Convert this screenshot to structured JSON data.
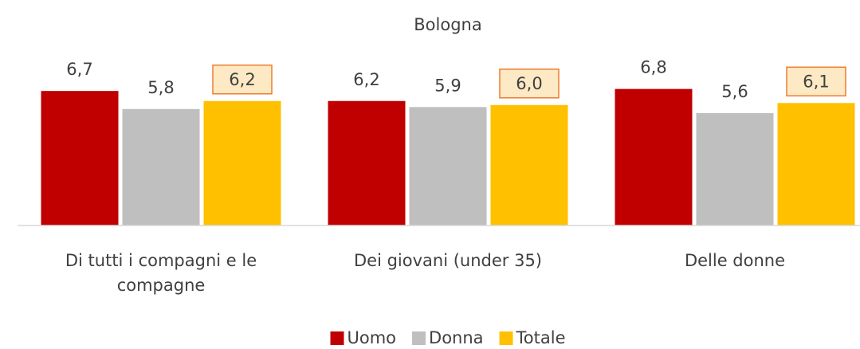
{
  "chart_data": {
    "type": "bar",
    "title": "Bologna",
    "categories": [
      "Di tutti i compagni e le compagne",
      "Dei giovani (under 35)",
      "Delle donne"
    ],
    "series": [
      {
        "name": "Uomo",
        "color": "#c00000",
        "values": [
          6.7,
          6.2,
          6.8
        ],
        "value_labels": [
          "6,7",
          "6,2",
          "6,8"
        ]
      },
      {
        "name": "Donna",
        "color": "#bfbfbf",
        "values": [
          5.8,
          5.9,
          5.6
        ],
        "value_labels": [
          "5,8",
          "5,9",
          "5,6"
        ]
      },
      {
        "name": "Totale",
        "color": "#ffc000",
        "values": [
          6.2,
          6.0,
          6.1
        ],
        "value_labels": [
          "6,2",
          "6,0",
          "6,1"
        ],
        "label_box": "#ed7d31"
      }
    ],
    "ylim": [
      0,
      10
    ],
    "legend": "bottom"
  }
}
